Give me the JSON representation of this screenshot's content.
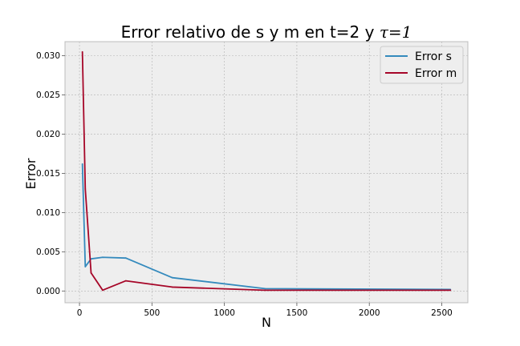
{
  "chart_data": {
    "type": "line",
    "title": "Error relativo de s y m en t=2 y ",
    "title_math": "τ=1",
    "xlabel": "N",
    "ylabel": "Error",
    "xlim": [
      -100,
      2680
    ],
    "ylim": [
      -0.0015,
      0.0318
    ],
    "xticks": [
      0,
      500,
      1000,
      1500,
      2000,
      2500
    ],
    "xtick_labels": [
      "0",
      "500",
      "1000",
      "1500",
      "2000",
      "2500"
    ],
    "yticks": [
      0.0,
      0.005,
      0.01,
      0.015,
      0.02,
      0.025,
      0.03
    ],
    "ytick_labels": [
      "0.000",
      "0.005",
      "0.010",
      "0.015",
      "0.020",
      "0.025",
      "0.030"
    ],
    "grid": true,
    "legend_position": "top-right",
    "series": [
      {
        "name": "Error s",
        "color": "#348abd",
        "x": [
          20,
          40,
          80,
          160,
          320,
          640,
          1280,
          2560
        ],
        "y": [
          0.0162,
          0.0031,
          0.0041,
          0.0043,
          0.0042,
          0.0017,
          0.0003,
          0.0002
        ]
      },
      {
        "name": "Error m",
        "color": "#a60628",
        "x": [
          20,
          40,
          80,
          160,
          320,
          640,
          1280,
          2560
        ],
        "y": [
          0.0305,
          0.013,
          0.0023,
          0.0001,
          0.0013,
          0.0005,
          0.0001,
          0.0001
        ]
      }
    ]
  },
  "style": {
    "plot_background": "#eeeeee",
    "grid_color": "#b2b2b2",
    "axes_edge": "#bcbcbc"
  }
}
